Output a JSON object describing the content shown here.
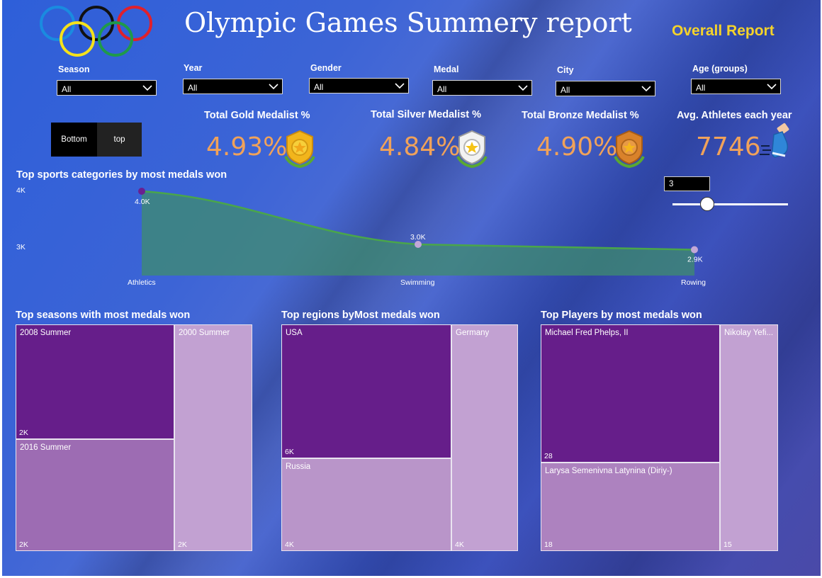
{
  "header": {
    "title": "Olympic Games Summery report",
    "overall_link": "Overall Report"
  },
  "filters": [
    {
      "label": "Season",
      "value": "All"
    },
    {
      "label": "Year",
      "value": "All"
    },
    {
      "label": "Gender",
      "value": "All"
    },
    {
      "label": "Medal",
      "value": "All"
    },
    {
      "label": "City",
      "value": "All"
    },
    {
      "label": "Age (groups)",
      "value": "All"
    }
  ],
  "toggle": {
    "bottom": "Bottom",
    "top": "top"
  },
  "kpis": [
    {
      "label": "Total Gold Medalist %",
      "value": "4.93%",
      "icon": "gold-medal-icon",
      "color": "#f0a25a"
    },
    {
      "label": "Total Silver Medalist %",
      "value": "4.84%",
      "icon": "silver-medal-icon",
      "color": "#f0a25a"
    },
    {
      "label": "Total Bronze Medalist %",
      "value": "4.90%",
      "icon": "bronze-medal-icon",
      "color": "#f0a25a"
    },
    {
      "label": "Avg. Athletes each year",
      "value": "7746",
      "icon": "running-shoe-icon",
      "color": "#f0a25a"
    }
  ],
  "topn": {
    "value": "3",
    "fraction": 0.3
  },
  "chart_data": [
    {
      "type": "area",
      "title": "Top sports categories by most medals won",
      "categories": [
        "Athletics",
        "Swimming",
        "Rowing"
      ],
      "values": [
        4000,
        3000,
        2900
      ],
      "data_labels": [
        "4.0K",
        "3.0K",
        "2.9K"
      ],
      "y_ticks": [
        "4K",
        "3K"
      ],
      "ylim": [
        2500,
        4000
      ],
      "color_line": "#4aa64a",
      "color_fill": "#3f8c6e"
    },
    {
      "type": "treemap",
      "title": "Top seasons with most medals won",
      "items": [
        {
          "name": "2008 Summer",
          "label": "2K"
        },
        {
          "name": "2016 Summer",
          "label": "2K"
        },
        {
          "name": "2000 Summer",
          "label": "2K"
        }
      ]
    },
    {
      "type": "treemap",
      "title": "Top regions byMost medals won",
      "items": [
        {
          "name": "USA",
          "label": "6K"
        },
        {
          "name": "Russia",
          "label": "4K"
        },
        {
          "name": "Germany",
          "label": "4K"
        }
      ]
    },
    {
      "type": "treemap",
      "title": "Top Players by most medals won",
      "items": [
        {
          "name": "Michael Fred Phelps, II",
          "label": "28"
        },
        {
          "name": "Larysa Semenivna Latynina (Diriy-)",
          "label": "18"
        },
        {
          "name": "Nikolay Yefi...",
          "label": "15"
        }
      ]
    }
  ]
}
